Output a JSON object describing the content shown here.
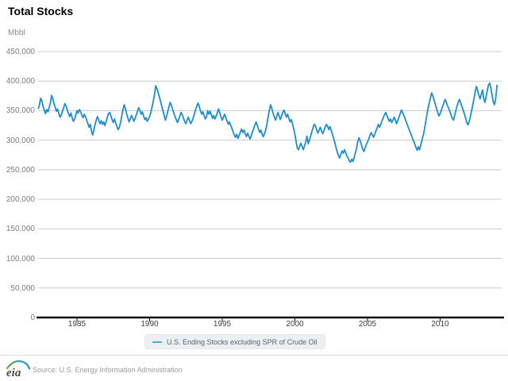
{
  "page": {
    "title": "Total Stocks"
  },
  "chart": {
    "unit_label": "Mbbl",
    "line_color": "#1d8ecf",
    "grid_color": "#cccccc",
    "axis_color": "#111111",
    "legend": {
      "label": "U.S. Ending Stocks excluding SPR of Crude Oil",
      "swatch_color": "#56a7d8",
      "background": "#edf0f3"
    }
  },
  "footer": {
    "logo_text": "eia",
    "source": "Source: U.S. Energy Information Administration"
  },
  "chart_data": {
    "type": "line",
    "title": "Total Stocks",
    "xlabel": "",
    "ylabel": "Mbbl",
    "xlim": [
      1982.2,
      2014.25
    ],
    "ylim": [
      0,
      450000
    ],
    "grid": "horizontal",
    "legend_position": "bottom-center",
    "xticks": [
      1985,
      1990,
      1995,
      2000,
      2005,
      2010
    ],
    "xtick_labels": [
      "1985",
      "1990",
      "1995",
      "2000",
      "2005",
      "2010"
    ],
    "yticks": [
      0,
      50000,
      100000,
      150000,
      200000,
      250000,
      300000,
      350000,
      400000,
      450000
    ],
    "ytick_labels": [
      "0",
      "50,000",
      "100,000",
      "150,000",
      "200,000",
      "250,000",
      "300,000",
      "350,000",
      "400,000",
      "450,000"
    ],
    "series": [
      {
        "name": "U.S. Ending Stocks excluding SPR of Crude Oil",
        "unit": "Mbbl",
        "color": "#1d8ecf",
        "frequency": "monthly",
        "start_year": 1982.3333,
        "step_years": 0.083333,
        "values": [
          353000,
          360000,
          371000,
          366000,
          357000,
          351000,
          345000,
          352000,
          348000,
          355000,
          363000,
          376000,
          370000,
          362000,
          356000,
          349000,
          353000,
          345000,
          339000,
          343000,
          349000,
          355000,
          362000,
          358000,
          351000,
          345000,
          340000,
          346000,
          338000,
          332000,
          336000,
          342000,
          350000,
          346000,
          352000,
          348000,
          342000,
          338000,
          344000,
          340000,
          334000,
          328000,
          322000,
          327000,
          315000,
          309000,
          318000,
          327000,
          335000,
          340000,
          334000,
          328000,
          333000,
          327000,
          331000,
          325000,
          331000,
          338000,
          345000,
          347000,
          341000,
          335000,
          330000,
          336000,
          329000,
          323000,
          318000,
          322000,
          330000,
          341000,
          352000,
          360000,
          353000,
          345000,
          338000,
          331000,
          336000,
          342000,
          337000,
          332000,
          337000,
          343000,
          349000,
          355000,
          350000,
          344000,
          348000,
          341000,
          335000,
          338000,
          332000,
          336000,
          340000,
          347000,
          356000,
          366000,
          377000,
          392000,
          388000,
          381000,
          374000,
          366000,
          358000,
          350000,
          342000,
          334000,
          340000,
          349000,
          357000,
          364000,
          359000,
          352000,
          346000,
          340000,
          335000,
          330000,
          335000,
          341000,
          347000,
          343000,
          337000,
          332000,
          328000,
          334000,
          339000,
          333000,
          328000,
          332000,
          338000,
          345000,
          352000,
          358000,
          363000,
          357000,
          350000,
          344000,
          348000,
          342000,
          336000,
          340000,
          350000,
          344000,
          349000,
          343000,
          337000,
          342000,
          336000,
          341000,
          347000,
          353000,
          346000,
          339000,
          334000,
          339000,
          344000,
          338000,
          332000,
          327000,
          331000,
          325000,
          320000,
          314000,
          309000,
          305000,
          310000,
          303000,
          308000,
          314000,
          319000,
          313000,
          317000,
          311000,
          306000,
          312000,
          307000,
          302000,
          308000,
          314000,
          320000,
          326000,
          331000,
          325000,
          319000,
          313000,
          317000,
          310000,
          306000,
          312000,
          318000,
          328000,
          340000,
          352000,
          360000,
          353000,
          346000,
          339000,
          334000,
          340000,
          347000,
          341000,
          335000,
          341000,
          347000,
          351000,
          345000,
          339000,
          344000,
          337000,
          331000,
          335000,
          328000,
          320000,
          310000,
          298000,
          287000,
          284000,
          290000,
          295000,
          289000,
          284000,
          291000,
          297000,
          307000,
          294000,
          300000,
          307000,
          314000,
          321000,
          327000,
          324000,
          318000,
          312000,
          317000,
          322000,
          316000,
          311000,
          316000,
          322000,
          327000,
          324000,
          318000,
          323000,
          317000,
          310000,
          303000,
          296000,
          288000,
          280000,
          274000,
          270000,
          276000,
          282000,
          278000,
          284000,
          279000,
          273000,
          270000,
          265000,
          263000,
          268000,
          264000,
          271000,
          279000,
          287000,
          298000,
          304000,
          299000,
          292000,
          285000,
          281000,
          287000,
          293000,
          297000,
          302000,
          308000,
          313000,
          309000,
          305000,
          310000,
          316000,
          321000,
          327000,
          322000,
          327000,
          333000,
          338000,
          343000,
          347000,
          342000,
          337000,
          332000,
          336000,
          330000,
          334000,
          339000,
          334000,
          328000,
          333000,
          339000,
          345000,
          351000,
          347000,
          342000,
          337000,
          331000,
          326000,
          320000,
          315000,
          310000,
          304000,
          299000,
          294000,
          288000,
          283000,
          289000,
          284000,
          292000,
          300000,
          308000,
          318000,
          330000,
          342000,
          353000,
          363000,
          372000,
          380000,
          375000,
          368000,
          361000,
          354000,
          347000,
          341000,
          345000,
          351000,
          357000,
          363000,
          369000,
          365000,
          359000,
          354000,
          349000,
          343000,
          337000,
          334000,
          342000,
          350000,
          358000,
          365000,
          369000,
          363000,
          357000,
          351000,
          345000,
          338000,
          330000,
          326000,
          332000,
          340000,
          350000,
          360000,
          371000,
          382000,
          391000,
          384000,
          376000,
          370000,
          378000,
          385000,
          371000,
          364000,
          374000,
          385000,
          394000,
          397000,
          388000,
          375000,
          364000,
          360000,
          372000,
          394000
        ]
      }
    ]
  }
}
